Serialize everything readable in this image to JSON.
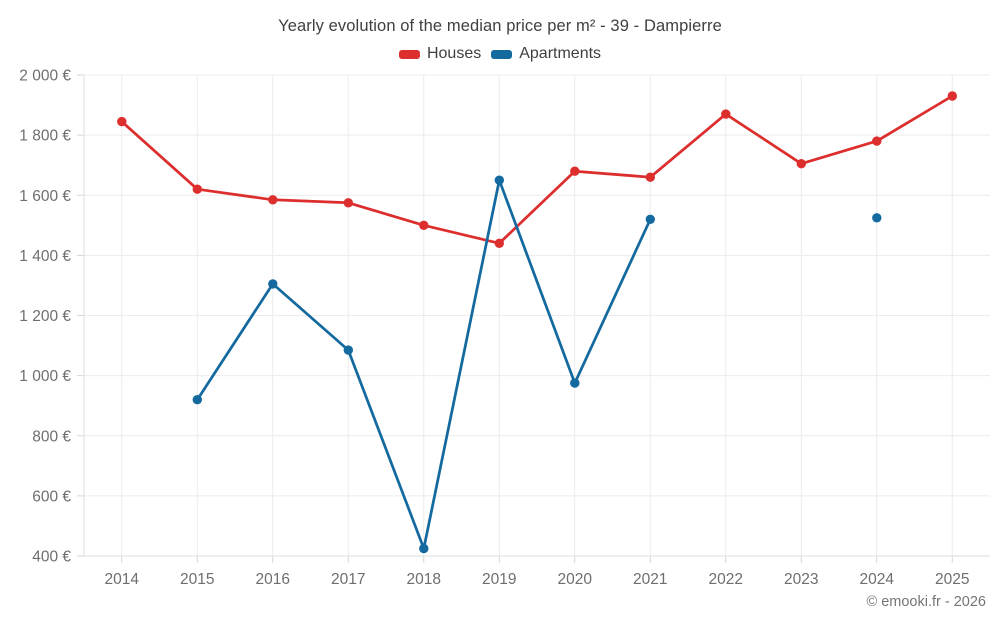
{
  "title": "Yearly evolution of the median price per m² - 39 - Dampierre",
  "legend": {
    "items": [
      {
        "label": "Houses",
        "color": "#dd2e2e"
      },
      {
        "label": "Apartments",
        "color": "#146a9f"
      }
    ]
  },
  "footer": {
    "credit": "© emooki.fr - 2026"
  },
  "colors": {
    "houses": "#dd2e2e",
    "apartments": "#146a9f",
    "gridline": "#ececec",
    "axis_line": "#dedede",
    "tick_mark": "#d6d6d6",
    "axis_label": "#6e6e6e",
    "title_text": "#404040"
  },
  "chart_data": {
    "type": "line",
    "title": "Yearly evolution of the median price per m² - 39 - Dampierre",
    "x": [
      "2014",
      "2015",
      "2016",
      "2017",
      "2018",
      "2019",
      "2020",
      "2021",
      "2022",
      "2023",
      "2024",
      "2025"
    ],
    "series": [
      {
        "name": "Houses",
        "color": "#dd2e2e",
        "values": [
          1845,
          1620,
          1585,
          1575,
          1500,
          1440,
          1680,
          1660,
          1870,
          1705,
          1780,
          1930
        ]
      },
      {
        "name": "Apartments",
        "color": "#146a9f",
        "values": [
          null,
          920,
          1305,
          1085,
          425,
          1650,
          975,
          1520,
          null,
          null,
          1525,
          null
        ]
      }
    ],
    "xlabel": "",
    "ylabel": "",
    "ylim": [
      400,
      2000
    ],
    "ytick_step": 200,
    "ytick_suffix": " €",
    "thousands_separator": " ",
    "grid": true,
    "legend_position": "top-center"
  }
}
